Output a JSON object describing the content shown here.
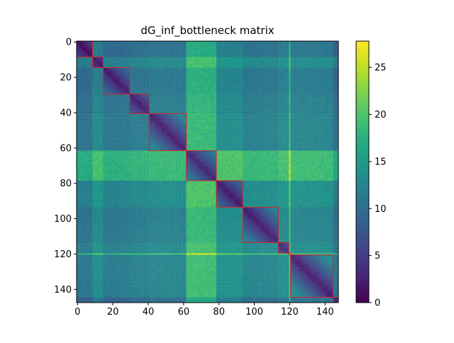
{
  "chart_data": {
    "type": "heatmap",
    "title": "dG_inf_bottleneck matrix",
    "xlabel": "",
    "ylabel": "",
    "size": 148,
    "xlim": [
      0,
      148
    ],
    "ylim": [
      148,
      0
    ],
    "x_ticks": [
      0,
      20,
      40,
      60,
      80,
      100,
      120,
      140
    ],
    "y_ticks": [
      0,
      20,
      40,
      60,
      80,
      100,
      120,
      140
    ],
    "colormap": "viridis",
    "colorbar": {
      "min": 0,
      "max": 27.8,
      "ticks": [
        0,
        5,
        10,
        15,
        20,
        25
      ]
    },
    "highlight_color": "#d62728",
    "blocks": [
      {
        "start": 0,
        "end": 9,
        "profile": 9,
        "diag": 1
      },
      {
        "start": 9,
        "end": 15,
        "profile": 14,
        "diag": 2
      },
      {
        "start": 15,
        "end": 30,
        "profile": 10,
        "diag": 2
      },
      {
        "start": 30,
        "end": 41,
        "profile": 11,
        "diag": 2
      },
      {
        "start": 41,
        "end": 62,
        "profile": 12,
        "diag": 2
      },
      {
        "start": 62,
        "end": 79,
        "profile": 25,
        "diag": 3
      },
      {
        "start": 79,
        "end": 94,
        "profile": 15,
        "diag": 2
      },
      {
        "start": 94,
        "end": 114,
        "profile": 12,
        "diag": 2
      },
      {
        "start": 114,
        "end": 120,
        "profile": 14,
        "diag": 3
      },
      {
        "start": 120,
        "end": 121,
        "profile": 25,
        "diag": 25
      },
      {
        "start": 121,
        "end": 145,
        "profile": 13,
        "diag": 2
      },
      {
        "start": 145,
        "end": 148,
        "profile": 8,
        "diag": 3
      }
    ]
  }
}
